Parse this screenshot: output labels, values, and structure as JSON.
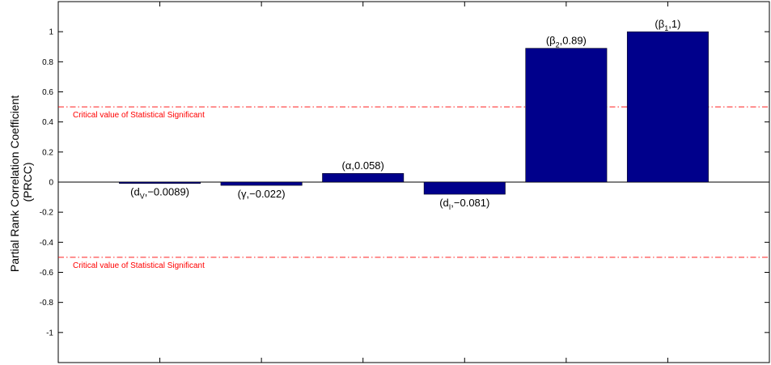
{
  "chart_data": {
    "type": "bar",
    "ylabel_line1": "Partial Rank Correlation Coefficient",
    "ylabel_line2": "(PRCC)",
    "ylim": [
      -1.2,
      1.2
    ],
    "yticks": [
      1,
      0.8,
      0.6,
      0.4,
      0.2,
      0,
      -0.2,
      -0.4,
      -0.6,
      -0.8,
      -1
    ],
    "ytick_labels": [
      "1",
      "0.8",
      "0.6",
      "0.4",
      "0.2",
      "0",
      "-0.2",
      "-0.4",
      "-0.6",
      "-0.8",
      "-1"
    ],
    "grid": false,
    "bar_color": "#00008b",
    "bars": [
      {
        "base": "d",
        "sub": "V",
        "value": -0.0089,
        "value_text": "−0.0089",
        "label_above": false
      },
      {
        "base": "γ",
        "sub": "",
        "value": -0.022,
        "value_text": "−0.022",
        "label_above": false
      },
      {
        "base": "α",
        "sub": "",
        "value": 0.058,
        "value_text": "0.058",
        "label_above": true
      },
      {
        "base": "d",
        "sub": "I",
        "value": -0.081,
        "value_text": "−0.081",
        "label_above": false
      },
      {
        "base": "β",
        "sub": "2",
        "value": 0.89,
        "value_text": "0.89",
        "label_above": true
      },
      {
        "base": "β",
        "sub": "1",
        "value": 1,
        "value_text": "1",
        "label_above": true
      }
    ],
    "critical_lines": [
      {
        "value": 0.5,
        "label": "Critical value of Statistical Significant"
      },
      {
        "value": -0.5,
        "label": "Critical value of Statistical Significant"
      }
    ],
    "critical_color": "#ff0000"
  }
}
